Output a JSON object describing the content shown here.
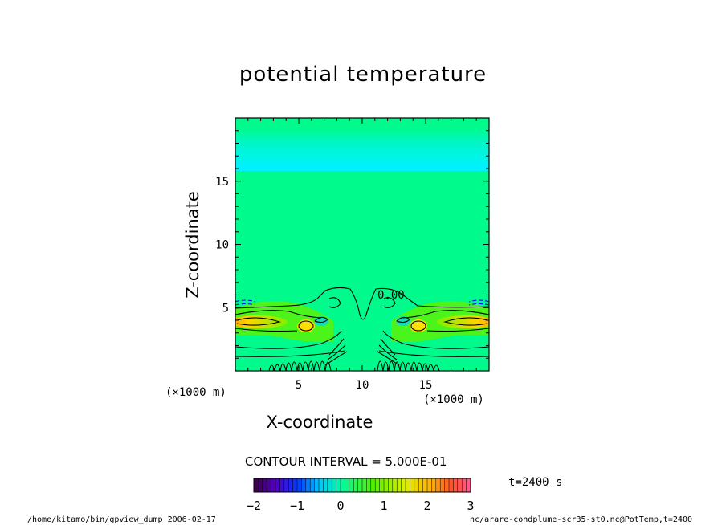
{
  "chart_data": {
    "type": "heatmap",
    "title": "potential temperature",
    "xlabel": "X-coordinate",
    "ylabel": "Z-coordinate",
    "x_scale_note": "(×1000 m)",
    "y_scale_note": "(×1000 m)",
    "xlim": [
      0,
      20
    ],
    "ylim": [
      0,
      20
    ],
    "x_ticks": [
      5,
      10,
      15
    ],
    "x_tick_labels": [
      "5",
      "10",
      "15"
    ],
    "y_ticks": [
      5,
      10,
      15
    ],
    "y_tick_labels": [
      "5",
      "10",
      "15"
    ],
    "contour_label": "0.00",
    "contour_interval_text": "CONTOUR INTERVAL = 5.000E-01",
    "colorbar": {
      "min": -2,
      "max": 3,
      "ticks": [
        -2,
        -1,
        0,
        1,
        2,
        3
      ],
      "tick_labels": [
        "−2",
        "−1",
        "0",
        "1",
        "2",
        "3"
      ]
    },
    "time_label": "t=2400 s"
  },
  "footer": {
    "left": "/home/kitamo/bin/gpview_dump  2006-02-17",
    "right": "nc/arare-condplume-scr35-st0.nc@PotTemp,t=2400"
  },
  "colors": {
    "background_field": "#00fa8c",
    "upper_band": "#00f6e0",
    "warm_core": "#ffd000"
  }
}
